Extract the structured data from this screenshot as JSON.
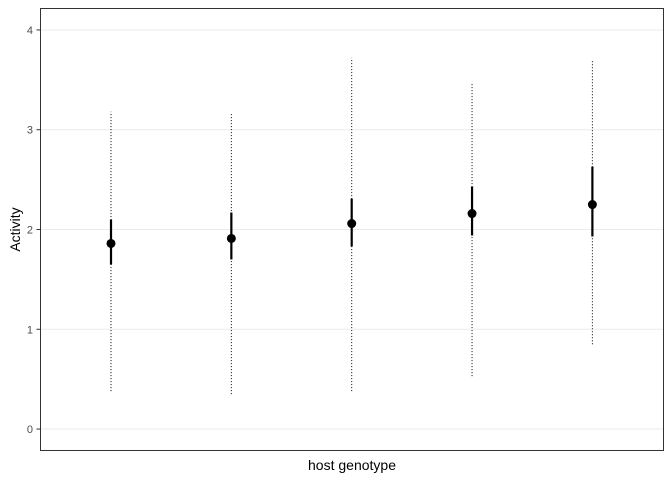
{
  "chart_data": {
    "type": "scatter",
    "title": "",
    "xlabel": "host genotype",
    "ylabel": "Activity",
    "ylim": [
      -0.22,
      4.22
    ],
    "yticks": [
      0,
      1,
      2,
      3,
      4
    ],
    "grid": "horizontal major lines",
    "legend": "none",
    "point_color": "#000000",
    "grid_color": "#ebebeb",
    "panel_border_color": "#333333",
    "series": [
      {
        "values": [
          1.86,
          1.91,
          2.06,
          2.16,
          2.25
        ],
        "inner_interval_low": [
          1.65,
          1.7,
          1.83,
          1.94,
          1.93
        ],
        "inner_interval_high": [
          2.1,
          2.17,
          2.31,
          2.43,
          2.63
        ],
        "outer_interval_low": [
          0.38,
          0.35,
          0.38,
          0.53,
          0.85
        ],
        "outer_interval_high": [
          3.18,
          3.16,
          3.72,
          3.46,
          3.7
        ]
      }
    ]
  }
}
